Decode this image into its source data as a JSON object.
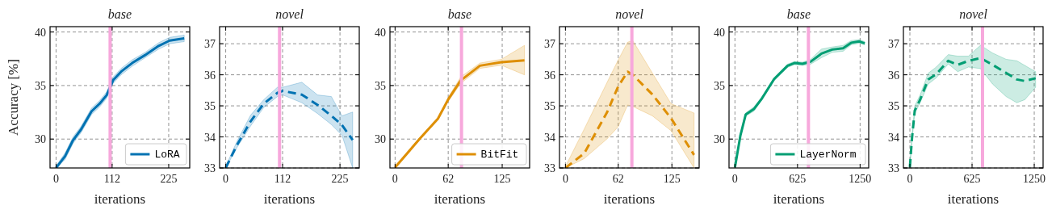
{
  "chart_data": [
    {
      "type": "line",
      "title": "base",
      "xlabel": "iterations",
      "ylabel": "Accuracy [%]",
      "xlim": [
        -12,
        267
      ],
      "ylim": [
        27.3,
        40.5
      ],
      "xticks": [
        0,
        112,
        225
      ],
      "yticks": [
        30,
        35,
        40
      ],
      "grid": true,
      "legend": "lower right",
      "ref_lines": [
        {
          "axis": "x",
          "value": 108,
          "color": "#f7a8dc"
        }
      ],
      "series": [
        {
          "name": "LoRA",
          "color": "#0072b2",
          "line_style": "solid",
          "x": [
            0,
            18,
            34,
            50,
            71,
            87,
            101,
            114,
            130,
            152,
            178,
            205,
            227,
            256
          ],
          "values": [
            27.3,
            28.4,
            29.9,
            30.9,
            32.6,
            33.3,
            34.1,
            35.5,
            36.3,
            37.1,
            37.85,
            38.7,
            39.2,
            39.4
          ],
          "lower": [
            27.3,
            28.1,
            29.6,
            30.6,
            32.3,
            33.0,
            33.8,
            35.2,
            36.0,
            36.8,
            37.6,
            38.4,
            38.9,
            39.1
          ],
          "upper": [
            27.5,
            28.7,
            30.2,
            31.2,
            32.9,
            33.6,
            34.4,
            35.8,
            36.6,
            37.4,
            38.1,
            39.0,
            39.5,
            39.7
          ]
        }
      ]
    },
    {
      "type": "line",
      "title": "novel",
      "xlabel": "iterations",
      "xlim": [
        -12,
        263
      ],
      "ylim": [
        33,
        37.55
      ],
      "xticks": [
        0,
        112,
        225
      ],
      "yticks": [
        33,
        34,
        35,
        36,
        37
      ],
      "grid": true,
      "ref_lines": [
        {
          "axis": "x",
          "value": 106,
          "color": "#f7a8dc"
        }
      ],
      "series": [
        {
          "color": "#0072b2",
          "line_style": "dashed",
          "x": [
            0,
            22,
            49,
            75,
            102,
            112.5,
            150,
            181,
            208,
            229,
            250
          ],
          "values": [
            33.0,
            33.73,
            34.5,
            35.07,
            35.42,
            35.48,
            35.36,
            35.03,
            34.68,
            34.38,
            33.9
          ],
          "lower": [
            33.0,
            33.65,
            34.35,
            34.95,
            35.3,
            35.35,
            35.1,
            34.75,
            34.4,
            34.05,
            33.0
          ],
          "upper": [
            33.05,
            33.85,
            34.7,
            35.2,
            35.6,
            35.6,
            35.76,
            35.35,
            35.3,
            34.68,
            34.8
          ]
        }
      ]
    },
    {
      "type": "line",
      "title": "base",
      "xlabel": "iterations",
      "xlim": [
        -6,
        157
      ],
      "ylim": [
        27.3,
        40.5
      ],
      "xticks": [
        0,
        62,
        125
      ],
      "yticks": [
        30,
        35,
        40
      ],
      "grid": true,
      "legend": "lower right",
      "ref_lines": [
        {
          "axis": "x",
          "value": 77.5,
          "color": "#f7a8dc"
        }
      ],
      "series": [
        {
          "name": "BitFit",
          "color": "#de8f05",
          "line_style": "solid",
          "x": [
            0,
            29,
            50,
            62,
            76.6,
            99,
            124,
            151
          ],
          "values": [
            27.35,
            30.05,
            31.9,
            33.7,
            35.47,
            36.85,
            37.18,
            37.35
          ],
          "lower": [
            27.3,
            29.95,
            31.8,
            33.5,
            35.2,
            36.6,
            36.9,
            36.0
          ],
          "upper": [
            27.45,
            30.15,
            32.0,
            33.9,
            35.8,
            37.1,
            37.45,
            38.75
          ]
        }
      ]
    },
    {
      "type": "line",
      "title": "novel",
      "xlabel": "iterations",
      "xlim": [
        -7,
        157
      ],
      "ylim": [
        33,
        37.55
      ],
      "xticks": [
        0,
        62,
        125
      ],
      "yticks": [
        33,
        34,
        35,
        36,
        37
      ],
      "grid": true,
      "ref_lines": [
        {
          "axis": "x",
          "value": 78,
          "color": "#f7a8dc"
        }
      ],
      "series": [
        {
          "color": "#de8f05",
          "line_style": "dashed",
          "x": [
            0,
            22,
            49,
            62,
            73,
            79,
            102,
            124,
            151
          ],
          "values": [
            33.0,
            33.47,
            34.8,
            35.63,
            36.1,
            36.0,
            35.37,
            34.6,
            33.42
          ],
          "lower": [
            33.0,
            33.3,
            33.94,
            34.33,
            35.03,
            34.98,
            34.68,
            34.2,
            33.0
          ],
          "upper": [
            33.05,
            34.25,
            35.76,
            36.48,
            37.05,
            37.1,
            36.06,
            35.07,
            34.77
          ]
        }
      ]
    },
    {
      "type": "line",
      "title": "base",
      "xlabel": "iterations",
      "xlim": [
        -59,
        1336
      ],
      "ylim": [
        27.3,
        40.5
      ],
      "xticks": [
        0,
        625,
        1250
      ],
      "yticks": [
        30,
        35,
        40
      ],
      "grid": true,
      "legend": "lower right",
      "ref_lines": [
        {
          "axis": "x",
          "value": 734,
          "color": "#f7a8dc"
        }
      ],
      "series": [
        {
          "name": "LayerNorm",
          "color": "#029e73",
          "line_style": "solid",
          "x": [
            0,
            54,
            108,
            189,
            270,
            391,
            526,
            594,
            675,
            756,
            864,
            972,
            1080,
            1161,
            1242,
            1296
          ],
          "values": [
            27.35,
            30.3,
            32.3,
            32.8,
            33.8,
            35.6,
            36.85,
            37.1,
            37.03,
            37.23,
            37.98,
            38.36,
            38.49,
            39.0,
            39.12,
            38.94
          ],
          "lower": [
            27.3,
            30.15,
            32.15,
            32.6,
            33.65,
            35.45,
            36.7,
            36.95,
            36.88,
            37.0,
            37.6,
            38.1,
            38.2,
            38.8,
            38.95,
            38.8
          ],
          "upper": [
            27.5,
            30.45,
            32.45,
            33.0,
            33.95,
            35.75,
            37.0,
            37.25,
            37.18,
            37.45,
            38.4,
            38.6,
            38.75,
            39.2,
            39.3,
            39.1
          ]
        }
      ]
    },
    {
      "type": "line",
      "title": "novel",
      "xlabel": "iterations",
      "xlim": [
        -65,
        1339
      ],
      "ylim": [
        33,
        37.55
      ],
      "xticks": [
        0,
        625,
        1250
      ],
      "yticks": [
        33,
        34,
        35,
        36,
        37
      ],
      "grid": true,
      "ref_lines": [
        {
          "axis": "x",
          "value": 730,
          "color": "#f7a8dc"
        }
      ],
      "series": [
        {
          "color": "#029e73",
          "line_style": "dashed",
          "x": [
            0,
            22,
            49,
            103,
            184,
            265,
            386,
            481,
            589,
            710,
            832,
            967,
            1075,
            1156,
            1264
          ],
          "values": [
            33.03,
            33.98,
            34.85,
            35.2,
            35.85,
            36.02,
            36.45,
            36.32,
            36.45,
            36.54,
            36.32,
            36.06,
            35.85,
            35.8,
            35.89
          ],
          "lower": [
            33.0,
            33.9,
            34.75,
            35.1,
            35.7,
            35.9,
            36.35,
            36.1,
            36.25,
            36.2,
            35.7,
            35.3,
            35.1,
            35.2,
            35.6
          ],
          "upper": [
            33.1,
            34.1,
            35.0,
            35.35,
            36.05,
            36.25,
            36.65,
            36.6,
            36.6,
            36.95,
            36.7,
            36.5,
            36.45,
            36.3,
            36.1
          ]
        }
      ]
    }
  ]
}
